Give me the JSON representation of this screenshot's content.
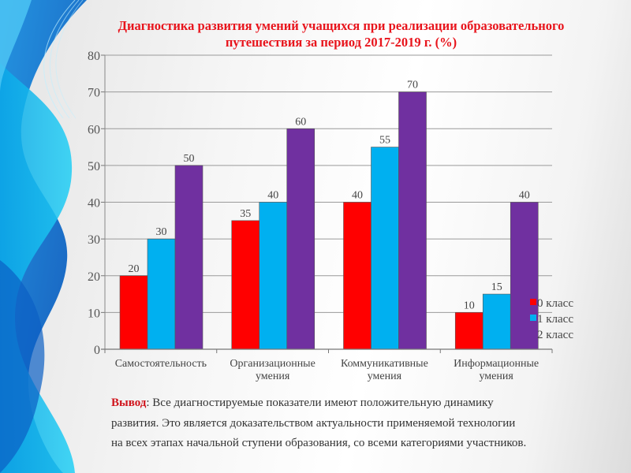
{
  "slide": {
    "title_line1": "Диагностика развития умений учащихся при реализации образовательного",
    "title_line2": "путешествия за период 2017-2019 г. (%)",
    "conclusion_lead": "Вывод",
    "conclusion_line1": ": Все диагностируемые показатели имеют положительную динамику",
    "conclusion_line2": "развития. Это является доказательством актуальности применяемой технологии",
    "conclusion_line3": "на всех этапах начальной ступени образования, со всеми категориями участников."
  },
  "colors": {
    "title": "#e8141c",
    "series0": "#ff0000",
    "series1": "#00b0f0",
    "series2": "#7030a0"
  },
  "chart_data": {
    "type": "bar",
    "title": "Диагностика развития умений учащихся при реализации образовательного путешествия за период 2017-2019 г. (%)",
    "xlabel": "",
    "ylabel": "",
    "ylim": [
      0,
      80
    ],
    "yticks": [
      0,
      10,
      20,
      30,
      40,
      50,
      60,
      70,
      80
    ],
    "grid": true,
    "legend_position": "right",
    "categories": [
      [
        "Самостоятельность"
      ],
      [
        "Организационные",
        "умения"
      ],
      [
        "Коммуникативные",
        "умения"
      ],
      [
        "Информационные",
        "умения"
      ]
    ],
    "series": [
      {
        "name": "0 класс",
        "color": "#ff0000",
        "values": [
          20,
          35,
          40,
          10
        ]
      },
      {
        "name": "1 класс",
        "color": "#00b0f0",
        "values": [
          30,
          40,
          55,
          15
        ]
      },
      {
        "name": "2 класс",
        "color": "#7030a0",
        "values": [
          50,
          60,
          70,
          40
        ]
      }
    ]
  }
}
